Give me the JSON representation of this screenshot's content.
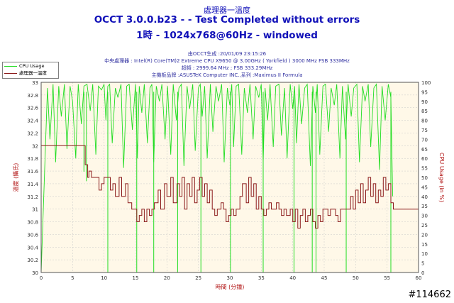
{
  "header": {
    "title_top": "處理器一溫度",
    "title_main": "OCCT 3.0.0.b23 -  - Test Completed without errors",
    "title_sub": "1時 - 1024x768@60Hz - windowed"
  },
  "info": {
    "line1": "由OCCT生成 :20/01/09 23:15:26",
    "line2": "中央處理器 : Intel(R) Core(TM)2 Extreme CPU X9650 @ 3.00GHz ( Yorkfield ) 3000 MHz FSB 333MHz",
    "line3": "超頻 : 2999.64 MHz ; FSB 333.29MHz",
    "line4": "主機板品牌 :ASUSTeK Computer INC.,系列 :Maximus II Formula"
  },
  "legend": {
    "cpu_usage": "CPU Usage",
    "temp": "處理器一溫度"
  },
  "watermark": "#114662",
  "colors": {
    "cpu_usage": "#22dd22",
    "temp": "#8b1a1a",
    "plot_bg": "#fff8e8",
    "axis_text": "#303030",
    "axis_label": "#b01010"
  },
  "chart_data": {
    "type": "line",
    "xlabel": "時間 (分鐘)",
    "ylabel_left": "溫度 (攝氏)",
    "ylabel_right": "CPU Usage (in %)",
    "xlim": [
      0,
      60
    ],
    "ylim_left": [
      30,
      33
    ],
    "ylim_right": [
      0,
      100
    ],
    "x_ticks": [
      0,
      5,
      10,
      15,
      20,
      25,
      30,
      35,
      40,
      45,
      50,
      55,
      60
    ],
    "y_ticks_left": [
      "30",
      "30.2",
      "30.4",
      "30.6",
      "30.8",
      "31",
      "31.2",
      "31.4",
      "31.6",
      "31.8",
      "32",
      "32.2",
      "32.4",
      "32.6",
      "32.8",
      "33"
    ],
    "y_ticks_right": [
      "0",
      "5",
      "10",
      "15",
      "20",
      "25",
      "30",
      "35",
      "40",
      "45",
      "50",
      "55",
      "60",
      "65",
      "70",
      "75",
      "80",
      "85",
      "90",
      "95",
      "100"
    ],
    "grid": true,
    "series": [
      {
        "name": "CPU Usage",
        "axis": "right",
        "x": [
          0.0,
          1.0,
          1.4,
          1.9,
          2.3,
          2.8,
          3.2,
          3.7,
          4.1,
          4.6,
          5.0,
          5.5,
          5.9,
          6.4,
          6.8,
          7.3,
          7.8,
          8.2,
          8.7,
          9.1,
          9.6,
          10.0,
          10.3,
          10.6,
          10.9,
          11.3,
          11.8,
          12.2,
          12.7,
          13.1,
          13.6,
          14.0,
          14.5,
          15.0,
          15.3,
          15.6,
          16.0,
          16.4,
          16.9,
          17.3,
          17.6,
          17.9,
          18.3,
          18.8,
          19.2,
          19.7,
          20.1,
          20.6,
          21.0,
          21.5,
          21.9,
          22.3,
          22.7,
          23.2,
          23.6,
          24.1,
          24.5,
          25.0,
          25.3,
          25.6,
          26.0,
          26.4,
          26.9,
          27.3,
          27.8,
          28.2,
          28.7,
          29.1,
          29.6,
          30.0,
          30.3,
          30.6,
          31.0,
          31.4,
          31.9,
          32.3,
          32.8,
          33.2,
          33.7,
          34.1,
          34.6,
          35.0,
          35.3,
          35.6,
          36.0,
          36.4,
          36.9,
          37.3,
          37.8,
          38.2,
          38.7,
          39.1,
          39.6,
          40.0,
          40.3,
          40.6,
          41.0,
          41.4,
          41.9,
          42.3,
          42.8,
          43.2,
          43.6,
          43.9,
          44.3,
          44.8,
          45.2,
          45.7,
          46.1,
          46.6,
          47.0,
          47.5,
          47.9,
          48.4,
          48.8,
          49.3,
          49.7,
          50.2,
          50.6,
          51.1,
          51.5,
          52.0,
          52.4,
          52.9,
          53.3,
          53.8,
          54.2,
          54.7,
          55.2,
          55.6,
          55.9
        ],
        "y": [
          0,
          97,
          70,
          99,
          58,
          98,
          82,
          99,
          65,
          98,
          90,
          60,
          99,
          78,
          98,
          99,
          85,
          99,
          62,
          98,
          96,
          99,
          80,
          98,
          99,
          68,
          97,
          92,
          99,
          55,
          98,
          99,
          75,
          99,
          60,
          98,
          84,
          99,
          68,
          97,
          99,
          58,
          98,
          90,
          99,
          70,
          98,
          62,
          99,
          80,
          97,
          99,
          56,
          98,
          86,
          99,
          64,
          97,
          99,
          82,
          98,
          60,
          99,
          74,
          98,
          90,
          99,
          58,
          97,
          88,
          99,
          66,
          98,
          99,
          62,
          97,
          84,
          99,
          70,
          98,
          92,
          99,
          58,
          97,
          80,
          99,
          66,
          98,
          99,
          72,
          97,
          60,
          99,
          86,
          98,
          68,
          99,
          78,
          97,
          99,
          56,
          98,
          84,
          99,
          62,
          98,
          99,
          74,
          97,
          88,
          99,
          60,
          98,
          70,
          99,
          82,
          97,
          99,
          58,
          98,
          90,
          99,
          66,
          97,
          99,
          54,
          98,
          80,
          99,
          92,
          40
        ],
        "dips_x": [
          6.8,
          7.2,
          10.6,
          15.2,
          17.9,
          21.7,
          25.4,
          30.1,
          35.3,
          40.2,
          43.1,
          43.7,
          48.5,
          55.6
        ],
        "dips_y": [
          53,
          48,
          0,
          0,
          0,
          0,
          0,
          0,
          0,
          0,
          0,
          0,
          0,
          0
        ]
      },
      {
        "name": "處理器一溫度",
        "axis": "left",
        "x": [
          0,
          6.8,
          7.0,
          7.4,
          7.6,
          8.0,
          8.6,
          9.2,
          9.6,
          10.0,
          10.6,
          11.0,
          11.4,
          11.8,
          12.4,
          12.8,
          13.4,
          13.8,
          14.4,
          14.8,
          15.2,
          15.6,
          16.0,
          16.4,
          16.8,
          17.2,
          17.6,
          18.0,
          18.6,
          19.0,
          19.6,
          20.0,
          20.6,
          21.0,
          21.6,
          22.0,
          22.4,
          22.8,
          23.2,
          23.6,
          24.0,
          24.4,
          24.8,
          25.2,
          25.6,
          26.0,
          26.4,
          26.8,
          27.2,
          27.6,
          28.0,
          28.6,
          29.0,
          29.4,
          29.8,
          30.2,
          30.6,
          31.0,
          31.6,
          32.0,
          32.6,
          33.0,
          33.4,
          33.8,
          34.2,
          34.6,
          35.0,
          35.4,
          35.8,
          36.2,
          36.6,
          37.0,
          37.4,
          37.8,
          38.2,
          38.6,
          39.0,
          39.6,
          40.0,
          40.4,
          40.8,
          41.2,
          41.6,
          42.0,
          42.4,
          42.8,
          43.2,
          43.6,
          44.0,
          44.4,
          44.8,
          45.2,
          45.6,
          46.0,
          46.4,
          46.8,
          47.2,
          47.6,
          48.0,
          48.4,
          48.8,
          49.2,
          49.6,
          50.0,
          50.4,
          50.8,
          51.2,
          51.6,
          52.0,
          52.4,
          52.8,
          53.2,
          53.6,
          54.0,
          54.4,
          54.8,
          55.2,
          55.6,
          56.0,
          60.0
        ],
        "y": [
          32.0,
          32.0,
          31.7,
          31.5,
          31.6,
          31.5,
          31.5,
          31.3,
          31.4,
          31.5,
          31.5,
          31.3,
          31.4,
          31.2,
          31.5,
          31.2,
          31.4,
          31.1,
          31.0,
          31.0,
          30.8,
          30.9,
          31.0,
          30.8,
          31.0,
          30.9,
          31.0,
          31.1,
          31.3,
          31.0,
          31.4,
          31.2,
          31.5,
          31.1,
          31.4,
          31.2,
          31.5,
          31.0,
          31.4,
          31.2,
          31.5,
          31.1,
          31.3,
          31.5,
          31.2,
          31.4,
          31.1,
          31.3,
          31.0,
          30.9,
          31.0,
          31.1,
          31.0,
          30.8,
          30.9,
          31.0,
          30.9,
          31.0,
          31.2,
          31.4,
          31.1,
          31.5,
          31.2,
          31.4,
          31.0,
          31.2,
          31.0,
          30.9,
          31.0,
          31.1,
          31.0,
          31.0,
          31.1,
          31.0,
          30.9,
          31.0,
          30.9,
          31.0,
          30.8,
          31.0,
          30.7,
          30.9,
          31.0,
          30.8,
          30.9,
          31.0,
          30.8,
          30.7,
          30.9,
          30.8,
          31.0,
          31.0,
          30.9,
          31.0,
          31.0,
          30.9,
          30.8,
          31.0,
          31.0,
          31.0,
          31.0,
          31.2,
          31.0,
          31.3,
          31.1,
          31.4,
          31.1,
          31.3,
          31.5,
          31.2,
          31.4,
          31.1,
          31.3,
          31.2,
          31.5,
          31.3,
          31.4,
          31.1,
          31.0,
          31.0
        ]
      }
    ]
  }
}
